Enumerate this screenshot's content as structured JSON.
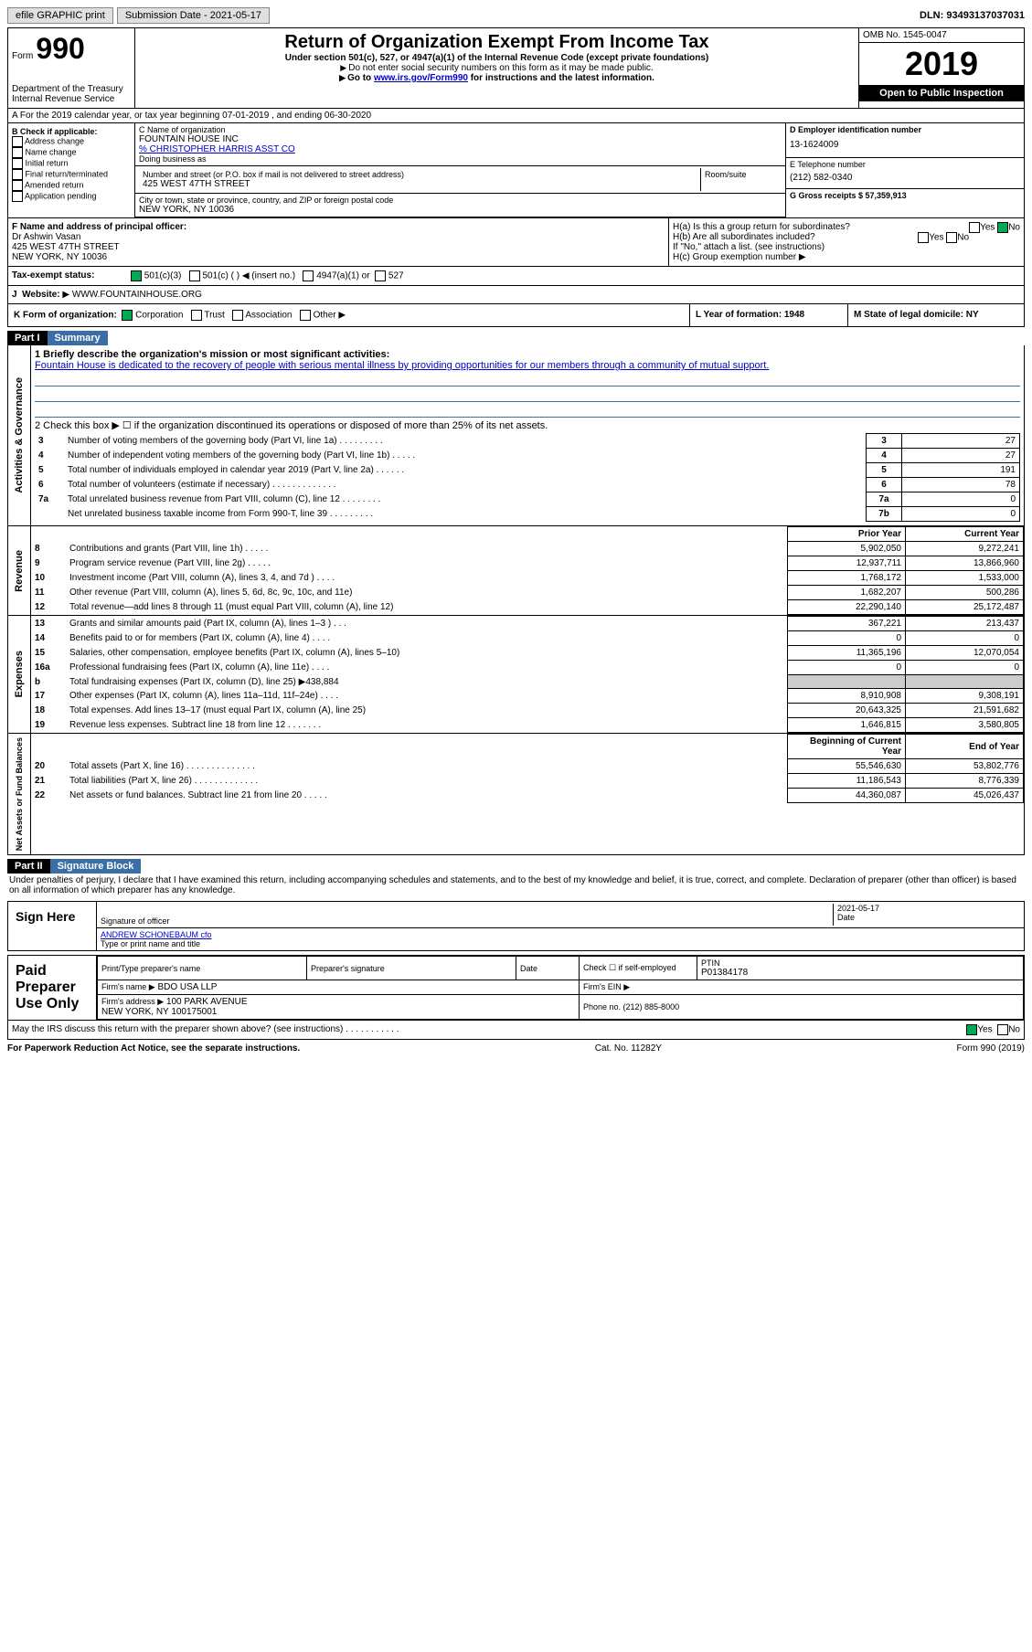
{
  "topbar": {
    "efile": "efile GRAPHIC print",
    "subdate_label": "Submission Date - 2021-05-17",
    "dln": "DLN: 93493137037031"
  },
  "header": {
    "form_label": "Form",
    "form_num": "990",
    "dept": "Department of the Treasury\nInternal Revenue Service",
    "title": "Return of Organization Exempt From Income Tax",
    "sub1": "Under section 501(c), 527, or 4947(a)(1) of the Internal Revenue Code (except private foundations)",
    "sub2": "Do not enter social security numbers on this form as it may be made public.",
    "sub3_pre": "Go to ",
    "sub3_link": "www.irs.gov/Form990",
    "sub3_post": " for instructions and the latest information.",
    "omb": "OMB No. 1545-0047",
    "year": "2019",
    "pub": "Open to Public Inspection"
  },
  "row_a": "A For the 2019 calendar year, or tax year beginning 07-01-2019   , and ending 06-30-2020",
  "col_b": {
    "title": "B Check if applicable:",
    "items": [
      "Address change",
      "Name change",
      "Initial return",
      "Final return/terminated",
      "Amended return",
      "Application pending"
    ]
  },
  "col_c": {
    "name_label": "C Name of organization",
    "name": "FOUNTAIN HOUSE INC",
    "care": "% CHRISTOPHER HARRIS ASST CO",
    "dba_label": "Doing business as",
    "addr_label": "Number and street (or P.O. box if mail is not delivered to street address)",
    "room_label": "Room/suite",
    "addr": "425 WEST 47TH STREET",
    "city_label": "City or town, state or province, country, and ZIP or foreign postal code",
    "city": "NEW YORK, NY  10036"
  },
  "col_d": {
    "ein_label": "D Employer identification number",
    "ein": "13-1624009",
    "phone_label": "E Telephone number",
    "phone": "(212) 582-0340",
    "gross_label": "G Gross receipts $ 57,359,913"
  },
  "row_f": {
    "label": "F  Name and address of principal officer:",
    "name": "Dr Ashwin Vasan",
    "addr1": "425 WEST 47TH STREET",
    "addr2": "NEW YORK, NY 10036"
  },
  "row_h": {
    "ha": "H(a)  Is this a group return for subordinates?",
    "hb": "H(b)  Are all subordinates included?",
    "hb_note": "If \"No,\" attach a list. (see instructions)",
    "hc": "H(c)  Group exemption number",
    "yes": "Yes",
    "no": "No"
  },
  "tax_exempt": {
    "label": "Tax-exempt status:",
    "o1": "501(c)(3)",
    "o2": "501(c) (  ) ◀ (insert no.)",
    "o3": "4947(a)(1) or",
    "o4": "527"
  },
  "website": {
    "label": "Website:",
    "value": "WWW.FOUNTAINHOUSE.ORG"
  },
  "row_k": {
    "label": "K Form of organization:",
    "corp": "Corporation",
    "trust": "Trust",
    "assoc": "Association",
    "other": "Other"
  },
  "row_l": {
    "label": "L Year of formation: 1948"
  },
  "row_m": {
    "label": "M State of legal domicile: NY"
  },
  "part1": {
    "hdr": "Part I",
    "title": "Summary"
  },
  "mission": {
    "q": "1  Briefly describe the organization's mission or most significant activities:",
    "text": "Fountain House is dedicated to the recovery of people with serious mental illness by providing opportunities for our members through a community of mutual support."
  },
  "gov": {
    "label": "Activities & Governance",
    "l2": "2   Check this box ▶ ☐ if the organization discontinued its operations or disposed of more than 25% of its net assets.",
    "rows": [
      {
        "n": "3",
        "t": "Number of voting members of the governing body (Part VI, line 1a)  .    .    .    .    .    .    .    .    .",
        "box": "3",
        "v": "27"
      },
      {
        "n": "4",
        "t": "Number of independent voting members of the governing body (Part VI, line 1b)  .    .    .    .    .",
        "box": "4",
        "v": "27"
      },
      {
        "n": "5",
        "t": "Total number of individuals employed in calendar year 2019 (Part V, line 2a)  .    .    .    .    .    .",
        "box": "5",
        "v": "191"
      },
      {
        "n": "6",
        "t": "Total number of volunteers (estimate if necessary)    .    .    .    .    .    .    .    .    .    .    .    .    .",
        "box": "6",
        "v": "78"
      },
      {
        "n": "7a",
        "t": "Total unrelated business revenue from Part VIII, column (C), line 12  .    .    .    .    .    .    .    .",
        "box": "7a",
        "v": "0"
      },
      {
        "n": "",
        "t": "Net unrelated business taxable income from Form 990-T, line 39   .    .    .    .    .    .    .    .    .",
        "box": "7b",
        "v": "0"
      }
    ]
  },
  "rev": {
    "label": "Revenue",
    "hdr_prior": "Prior Year",
    "hdr_curr": "Current Year",
    "rows": [
      {
        "n": "8",
        "t": "Contributions and grants (Part VIII, line 1h)  .    .    .    .    .",
        "p": "5,902,050",
        "c": "9,272,241"
      },
      {
        "n": "9",
        "t": "Program service revenue (Part VIII, line 2g)  .    .    .    .    .",
        "p": "12,937,711",
        "c": "13,866,960"
      },
      {
        "n": "10",
        "t": "Investment income (Part VIII, column (A), lines 3, 4, and 7d )    .    .    .    .",
        "p": "1,768,172",
        "c": "1,533,000"
      },
      {
        "n": "11",
        "t": "Other revenue (Part VIII, column (A), lines 5, 6d, 8c, 9c, 10c, and 11e)",
        "p": "1,682,207",
        "c": "500,286"
      },
      {
        "n": "12",
        "t": "Total revenue—add lines 8 through 11 (must equal Part VIII, column (A), line 12)",
        "p": "22,290,140",
        "c": "25,172,487"
      }
    ]
  },
  "exp": {
    "label": "Expenses",
    "rows": [
      {
        "n": "13",
        "t": "Grants and similar amounts paid (Part IX, column (A), lines 1–3 )  .    .    .",
        "p": "367,221",
        "c": "213,437"
      },
      {
        "n": "14",
        "t": "Benefits paid to or for members (Part IX, column (A), line 4)  .    .    .    .",
        "p": "0",
        "c": "0"
      },
      {
        "n": "15",
        "t": "Salaries, other compensation, employee benefits (Part IX, column (A), lines 5–10)",
        "p": "11,365,196",
        "c": "12,070,054"
      },
      {
        "n": "16a",
        "t": "Professional fundraising fees (Part IX, column (A), line 11e)  .    .    .    .",
        "p": "0",
        "c": "0"
      },
      {
        "n": "b",
        "t": "Total fundraising expenses (Part IX, column (D), line 25) ▶438,884",
        "p": "",
        "c": "",
        "shade": true
      },
      {
        "n": "17",
        "t": "Other expenses (Part IX, column (A), lines 11a–11d, 11f–24e)  .    .    .    .",
        "p": "8,910,908",
        "c": "9,308,191"
      },
      {
        "n": "18",
        "t": "Total expenses. Add lines 13–17 (must equal Part IX, column (A), line 25)",
        "p": "20,643,325",
        "c": "21,591,682"
      },
      {
        "n": "19",
        "t": "Revenue less expenses. Subtract line 18 from line 12 .    .    .    .    .    .    .",
        "p": "1,646,815",
        "c": "3,580,805"
      }
    ]
  },
  "net": {
    "label": "Net Assets or Fund Balances",
    "hdr_beg": "Beginning of Current Year",
    "hdr_end": "End of Year",
    "rows": [
      {
        "n": "20",
        "t": "Total assets (Part X, line 16)  .    .    .    .    .    .    .    .    .    .    .    .    .    .",
        "p": "55,546,630",
        "c": "53,802,776"
      },
      {
        "n": "21",
        "t": "Total liabilities (Part X, line 26)  .    .    .    .    .    .    .    .    .    .    .    .    .",
        "p": "11,186,543",
        "c": "8,776,339"
      },
      {
        "n": "22",
        "t": "Net assets or fund balances. Subtract line 21 from line 20 .    .    .    .    .",
        "p": "44,360,087",
        "c": "45,026,437"
      }
    ]
  },
  "part2": {
    "hdr": "Part II",
    "title": "Signature Block"
  },
  "penalties": "Under penalties of perjury, I declare that I have examined this return, including accompanying schedules and statements, and to the best of my knowledge and belief, it is true, correct, and complete. Declaration of preparer (other than officer) is based on all information of which preparer has any knowledge.",
  "sign": {
    "here": "Sign Here",
    "sig_label": "Signature of officer",
    "date_label": "Date",
    "date": "2021-05-17",
    "name": "ANDREW SCHONEBAUM cfo",
    "name_label": "Type or print name and title"
  },
  "paid": {
    "label": "Paid Preparer Use Only",
    "print_label": "Print/Type preparer's name",
    "sig_label": "Preparer's signature",
    "date_label": "Date",
    "check_label": "Check ☐ if self-employed",
    "ptin_label": "PTIN",
    "ptin": "P01384178",
    "firm_name_label": "Firm's name   ▶",
    "firm_name": "BDO USA LLP",
    "firm_ein_label": "Firm's EIN ▶",
    "firm_addr_label": "Firm's address ▶",
    "firm_addr1": "100 PARK AVENUE",
    "firm_addr2": "NEW YORK, NY  100175001",
    "phone_label": "Phone no. (212) 885-8000"
  },
  "discuss": "May the IRS discuss this return with the preparer shown above? (see instructions)    .    .    .    .    .    .    .    .    .    .    .",
  "footer": {
    "left": "For Paperwork Reduction Act Notice, see the separate instructions.",
    "mid": "Cat. No. 11282Y",
    "right": "Form 990 (2019)"
  }
}
